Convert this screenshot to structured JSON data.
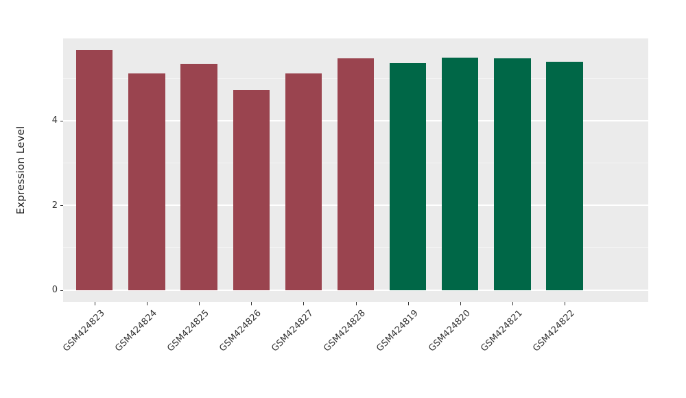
{
  "chart_data": {
    "type": "bar",
    "title": "",
    "xlabel": "",
    "ylabel": "Expression Level",
    "categories": [
      "GSM424823",
      "GSM424824",
      "GSM424825",
      "GSM424826",
      "GSM424827",
      "GSM424828",
      "GSM424819",
      "GSM424820",
      "GSM424821",
      "GSM424822"
    ],
    "values": [
      5.66,
      5.11,
      5.34,
      4.73,
      5.11,
      5.47,
      5.36,
      5.49,
      5.47,
      5.39
    ],
    "colors": [
      "#9A444F",
      "#9A444F",
      "#9A444F",
      "#9A444F",
      "#9A444F",
      "#9A444F",
      "#006747",
      "#006747",
      "#006747",
      "#006747"
    ],
    "yticks": [
      0,
      2,
      4
    ],
    "yticks_minor": [
      1,
      3,
      5
    ],
    "ylim": [
      -0.28,
      5.94
    ],
    "bar_width_fraction": 0.7,
    "grid": "on",
    "legend": "none",
    "x_tick_rotation_deg": 45,
    "style": {
      "panel_bg": "#EBEBEB",
      "grid_major_color": "#FFFFFF",
      "grid_minor_color": "#F4F4F4",
      "bar_color_group1": "#9A444F",
      "bar_color_group2": "#006747",
      "text_color": "#333333",
      "tick_color": "#333333"
    }
  }
}
